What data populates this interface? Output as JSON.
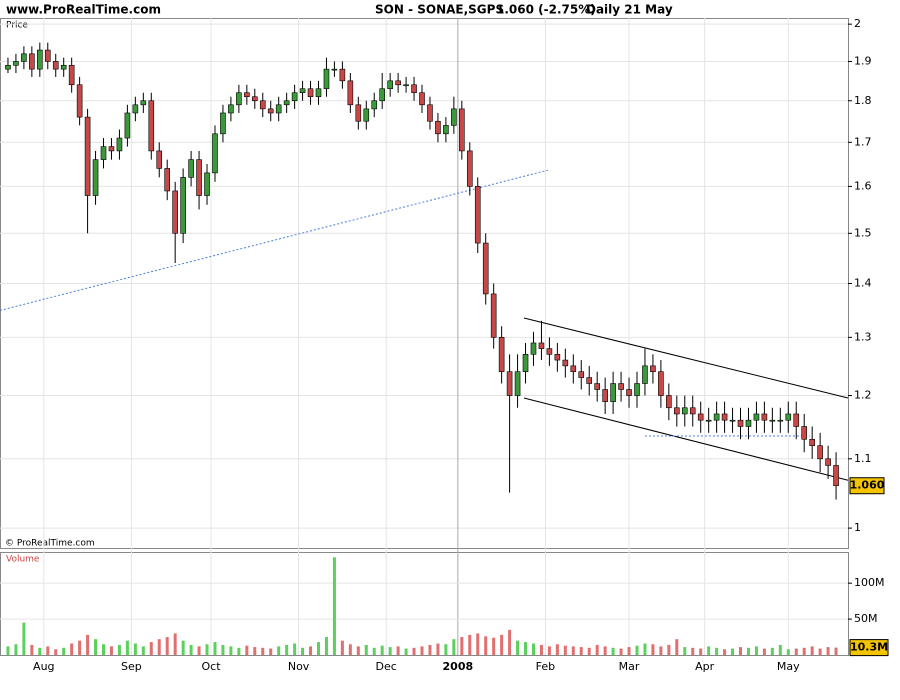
{
  "header": {
    "site": "www.ProRealTime.com",
    "instrument": "SON - SONAE,SGPS",
    "quote": "1.060 (-2.75%)",
    "period": "Daily 21 May"
  },
  "chart_data": [
    {
      "type": "candlestick",
      "label": "Price",
      "credit": "© ProRealTime.com",
      "log": true,
      "grid": true,
      "xlim": [
        -1,
        105.5
      ],
      "ylim": [
        0.973,
        2.017
      ],
      "yticks": [
        1,
        1.1,
        1.2,
        1.3,
        1.4,
        1.5,
        1.6,
        1.7,
        1.8,
        1.9,
        2
      ],
      "xticks": [
        {
          "value": 4.5,
          "label": "Aug"
        },
        {
          "value": 15.5,
          "label": "Sep"
        },
        {
          "value": 25.5,
          "label": "Oct"
        },
        {
          "value": 36.5,
          "label": "Nov"
        },
        {
          "value": 47.5,
          "label": "Dec"
        },
        {
          "value": 56.5,
          "label": "2008"
        },
        {
          "value": 67.5,
          "label": "Feb"
        },
        {
          "value": 78,
          "label": "Mar"
        },
        {
          "value": 87.5,
          "label": "Apr"
        },
        {
          "value": 98,
          "label": "May"
        }
      ],
      "up_color": "#3a9a3a",
      "down_color": "#c84848",
      "open": [
        1.88,
        1.89,
        1.9,
        1.92,
        1.88,
        1.93,
        1.9,
        1.88,
        1.89,
        1.84,
        1.76,
        1.58,
        1.66,
        1.69,
        1.68,
        1.71,
        1.77,
        1.79,
        1.8,
        1.68,
        1.64,
        1.59,
        1.5,
        1.62,
        1.66,
        1.58,
        1.63,
        1.72,
        1.77,
        1.79,
        1.82,
        1.81,
        1.8,
        1.78,
        1.77,
        1.79,
        1.8,
        1.82,
        1.83,
        1.81,
        1.83,
        1.88,
        1.88,
        1.85,
        1.79,
        1.75,
        1.78,
        1.8,
        1.83,
        1.85,
        1.84,
        1.84,
        1.82,
        1.79,
        1.75,
        1.72,
        1.74,
        1.78,
        1.68,
        1.6,
        1.48,
        1.38,
        1.3,
        1.24,
        1.2,
        1.24,
        1.27,
        1.29,
        1.28,
        1.27,
        1.26,
        1.25,
        1.24,
        1.23,
        1.22,
        1.21,
        1.19,
        1.22,
        1.21,
        1.2,
        1.22,
        1.25,
        1.24,
        1.2,
        1.18,
        1.17,
        1.18,
        1.17,
        1.16,
        1.16,
        1.17,
        1.16,
        1.16,
        1.15,
        1.16,
        1.17,
        1.16,
        1.16,
        1.16,
        1.17,
        1.15,
        1.13,
        1.12,
        1.1,
        1.09
      ],
      "high": [
        1.91,
        1.92,
        1.94,
        1.94,
        1.95,
        1.95,
        1.92,
        1.91,
        1.91,
        1.86,
        1.78,
        1.68,
        1.71,
        1.71,
        1.73,
        1.79,
        1.81,
        1.82,
        1.82,
        1.7,
        1.66,
        1.61,
        1.64,
        1.68,
        1.68,
        1.65,
        1.74,
        1.79,
        1.81,
        1.84,
        1.84,
        1.83,
        1.82,
        1.8,
        1.81,
        1.82,
        1.84,
        1.85,
        1.85,
        1.85,
        1.91,
        1.9,
        1.9,
        1.87,
        1.81,
        1.8,
        1.82,
        1.87,
        1.87,
        1.87,
        1.86,
        1.86,
        1.84,
        1.81,
        1.77,
        1.76,
        1.81,
        1.8,
        1.7,
        1.62,
        1.5,
        1.4,
        1.32,
        1.27,
        1.27,
        1.29,
        1.31,
        1.33,
        1.3,
        1.29,
        1.28,
        1.27,
        1.26,
        1.25,
        1.24,
        1.23,
        1.24,
        1.24,
        1.23,
        1.24,
        1.28,
        1.27,
        1.26,
        1.22,
        1.2,
        1.2,
        1.2,
        1.19,
        1.18,
        1.19,
        1.19,
        1.18,
        1.18,
        1.18,
        1.19,
        1.19,
        1.18,
        1.18,
        1.19,
        1.19,
        1.17,
        1.15,
        1.14,
        1.12,
        1.11
      ],
      "low": [
        1.87,
        1.87,
        1.88,
        1.86,
        1.86,
        1.88,
        1.86,
        1.86,
        1.82,
        1.74,
        1.5,
        1.56,
        1.64,
        1.66,
        1.66,
        1.69,
        1.75,
        1.77,
        1.66,
        1.62,
        1.57,
        1.44,
        1.48,
        1.6,
        1.55,
        1.56,
        1.61,
        1.7,
        1.75,
        1.77,
        1.79,
        1.78,
        1.76,
        1.75,
        1.75,
        1.77,
        1.78,
        1.8,
        1.79,
        1.79,
        1.81,
        1.86,
        1.83,
        1.77,
        1.73,
        1.73,
        1.76,
        1.78,
        1.81,
        1.82,
        1.82,
        1.8,
        1.77,
        1.73,
        1.7,
        1.7,
        1.72,
        1.66,
        1.58,
        1.46,
        1.36,
        1.28,
        1.22,
        1.05,
        1.18,
        1.22,
        1.25,
        1.26,
        1.25,
        1.24,
        1.23,
        1.22,
        1.21,
        1.2,
        1.19,
        1.17,
        1.17,
        1.19,
        1.18,
        1.18,
        1.2,
        1.22,
        1.18,
        1.16,
        1.15,
        1.15,
        1.15,
        1.14,
        1.14,
        1.14,
        1.14,
        1.14,
        1.13,
        1.13,
        1.14,
        1.14,
        1.14,
        1.14,
        1.14,
        1.13,
        1.11,
        1.1,
        1.08,
        1.07,
        1.04
      ],
      "close": [
        1.89,
        1.9,
        1.92,
        1.88,
        1.93,
        1.9,
        1.88,
        1.89,
        1.84,
        1.76,
        1.58,
        1.66,
        1.69,
        1.68,
        1.71,
        1.77,
        1.79,
        1.8,
        1.68,
        1.64,
        1.59,
        1.5,
        1.62,
        1.66,
        1.58,
        1.63,
        1.72,
        1.77,
        1.79,
        1.82,
        1.81,
        1.8,
        1.78,
        1.77,
        1.79,
        1.8,
        1.82,
        1.83,
        1.81,
        1.83,
        1.88,
        1.88,
        1.85,
        1.79,
        1.75,
        1.78,
        1.8,
        1.83,
        1.85,
        1.84,
        1.84,
        1.82,
        1.79,
        1.75,
        1.72,
        1.74,
        1.78,
        1.68,
        1.6,
        1.48,
        1.38,
        1.3,
        1.24,
        1.2,
        1.24,
        1.27,
        1.29,
        1.28,
        1.27,
        1.26,
        1.25,
        1.24,
        1.23,
        1.22,
        1.21,
        1.19,
        1.22,
        1.21,
        1.2,
        1.22,
        1.25,
        1.24,
        1.2,
        1.18,
        1.17,
        1.18,
        1.17,
        1.16,
        1.16,
        1.17,
        1.16,
        1.16,
        1.15,
        1.16,
        1.17,
        1.16,
        1.16,
        1.16,
        1.17,
        1.15,
        1.13,
        1.12,
        1.1,
        1.09,
        1.06
      ],
      "last_label": {
        "value": 1.06,
        "label": "1.060"
      },
      "trendlines": [
        {
          "x": [
            -1,
            67.8
          ],
          "y": [
            1.349,
            1.636
          ],
          "color": "#4a7fd8",
          "dashed": true
        },
        {
          "x": [
            64.8,
            105.5
          ],
          "y": [
            1.335,
            1.196
          ],
          "color": "#000000",
          "dashed": false
        },
        {
          "x": [
            64.8,
            105.5
          ],
          "y": [
            1.196,
            1.068
          ],
          "color": "#000000",
          "dashed": false
        },
        {
          "x": [
            80,
            100.7
          ],
          "y": [
            1.135,
            1.135
          ],
          "color": "#4a7fd8",
          "dashed": true
        }
      ]
    },
    {
      "type": "volume",
      "label": "Volume",
      "xlim": [
        -1,
        105.5
      ],
      "ylim": [
        0,
        142
      ],
      "yticks": [
        {
          "value": 50,
          "label": "50M"
        },
        {
          "value": 100,
          "label": "100M"
        }
      ],
      "values": [
        12,
        15,
        45,
        14,
        10,
        12,
        8,
        10,
        16,
        20,
        28,
        22,
        15,
        12,
        14,
        20,
        16,
        12,
        18,
        22,
        25,
        30,
        20,
        14,
        12,
        15,
        18,
        14,
        12,
        10,
        13,
        11,
        10,
        9,
        12,
        14,
        16,
        10,
        12,
        18,
        25,
        136,
        20,
        15,
        12,
        14,
        10,
        13,
        11,
        12,
        9,
        10,
        12,
        14,
        16,
        15,
        22,
        25,
        28,
        30,
        26,
        24,
        28,
        35,
        20,
        18,
        16,
        14,
        12,
        15,
        13,
        12,
        11,
        10,
        14,
        12,
        10,
        9,
        11,
        13,
        16,
        15,
        12,
        14,
        22,
        11,
        10,
        9,
        12,
        10,
        8,
        9,
        11,
        10,
        12,
        9,
        10,
        14,
        8,
        9,
        10,
        12,
        9,
        11,
        10.3
      ],
      "last_label": {
        "value": 10.3,
        "label": "10.3M"
      }
    }
  ]
}
